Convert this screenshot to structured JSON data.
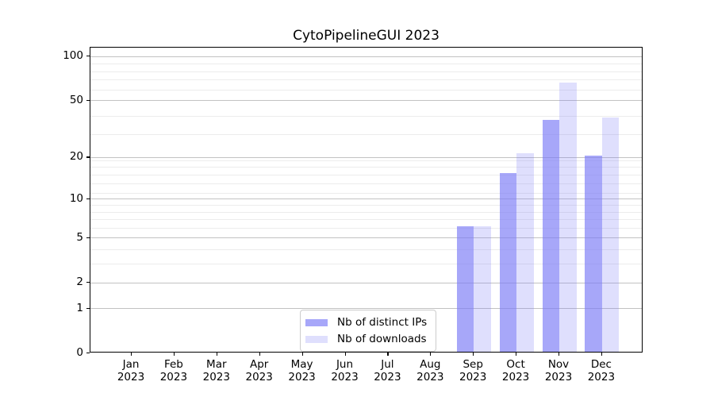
{
  "title": "CytoPipelineGUI 2023",
  "legend": {
    "items": [
      {
        "label": "Nb of distinct IPs",
        "color": "rgba(124,124,246,0.67)"
      },
      {
        "label": "Nb of downloads",
        "color": "rgba(124,124,246,0.245)"
      }
    ]
  },
  "axes": {
    "y_tick_labels": [
      "100",
      "50",
      "20",
      "10",
      "5",
      "2",
      "1",
      "0"
    ],
    "x_tick_line1": [
      "Jan",
      "Feb",
      "Mar",
      "Apr",
      "May",
      "Jun",
      "Jul",
      "Aug",
      "Sep",
      "Oct",
      "Nov",
      "Dec"
    ],
    "x_tick_line2": "2023"
  },
  "chart_data": {
    "type": "bar",
    "title": "CytoPipelineGUI 2023",
    "categories": [
      "Jan 2023",
      "Feb 2023",
      "Mar 2023",
      "Apr 2023",
      "May 2023",
      "Jun 2023",
      "Jul 2023",
      "Aug 2023",
      "Sep 2023",
      "Oct 2023",
      "Nov 2023",
      "Dec 2023"
    ],
    "series": [
      {
        "name": "Nb of distinct IPs",
        "values": [
          0,
          0,
          0,
          0,
          0,
          0,
          0,
          0,
          6,
          15,
          36,
          20
        ]
      },
      {
        "name": "Nb of downloads",
        "values": [
          0,
          0,
          0,
          0,
          0,
          0,
          0,
          0,
          6,
          21,
          65,
          37
        ]
      }
    ],
    "xlabel": "",
    "ylabel": "",
    "y_scale": "log10(value+1)",
    "ylim": [
      0,
      115
    ],
    "y_ticks_major": [
      0,
      1,
      2,
      5,
      10,
      20,
      50,
      100
    ],
    "y_ticks_minor": [
      3,
      4,
      6,
      7,
      8,
      9,
      11,
      13,
      15,
      17,
      19,
      29,
      39,
      59,
      69,
      79,
      89
    ],
    "grid": "horizontal, major+minor",
    "legend_position": "lower center"
  },
  "colors": {
    "bar_distinct_ips": "rgba(124,124,246,0.67)",
    "bar_downloads": "rgba(124,124,246,0.245)",
    "grid_major": "#c2c2c2",
    "grid_minor": "#ececec",
    "spine": "#000000",
    "background": "#ffffff"
  }
}
